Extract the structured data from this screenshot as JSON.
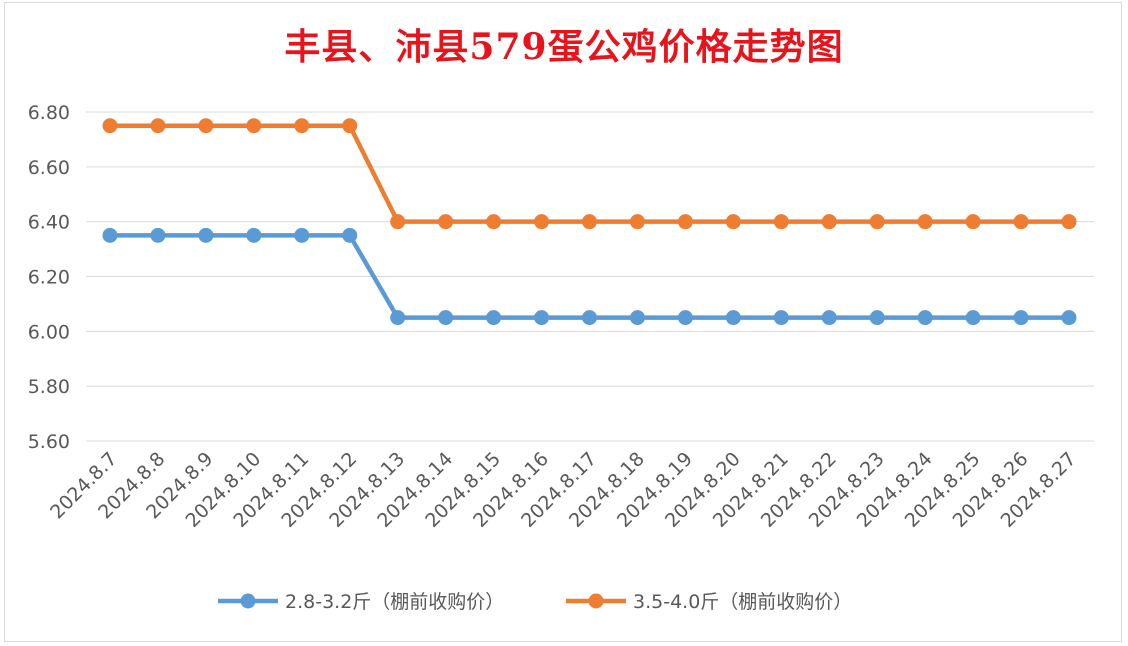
{
  "chart_data": {
    "type": "line",
    "title": "丰县、沛县579蛋公鸡价格走势图",
    "xlabel": "",
    "ylabel": "",
    "ylim": [
      5.6,
      6.8
    ],
    "yticks": [
      "6.80",
      "6.60",
      "6.40",
      "6.20",
      "6.00",
      "5.80",
      "5.60"
    ],
    "ytick_values": [
      6.8,
      6.6,
      6.4,
      6.2,
      6.0,
      5.8,
      5.6
    ],
    "grid": true,
    "legend_position": "bottom",
    "categories": [
      "2024.8.7",
      "2024.8.8",
      "2024.8.9",
      "2024.8.10",
      "2024.8.11",
      "2024.8.12",
      "2024.8.13",
      "2024.8.14",
      "2024.8.15",
      "2024.8.16",
      "2024.8.17",
      "2024.8.18",
      "2024.8.19",
      "2024.8.20",
      "2024.8.21",
      "2024.8.22",
      "2024.8.23",
      "2024.8.24",
      "2024.8.25",
      "2024.8.26",
      "2024.8.27"
    ],
    "series": [
      {
        "name": "2.8-3.2斤（棚前收购价）",
        "color": "#5b9bd5",
        "values": [
          6.35,
          6.35,
          6.35,
          6.35,
          6.35,
          6.35,
          6.05,
          6.05,
          6.05,
          6.05,
          6.05,
          6.05,
          6.05,
          6.05,
          6.05,
          6.05,
          6.05,
          6.05,
          6.05,
          6.05,
          6.05
        ]
      },
      {
        "name": "3.5-4.0斤（棚前收购价）",
        "color": "#ed7d31",
        "values": [
          6.75,
          6.75,
          6.75,
          6.75,
          6.75,
          6.75,
          6.4,
          6.4,
          6.4,
          6.4,
          6.4,
          6.4,
          6.4,
          6.4,
          6.4,
          6.4,
          6.4,
          6.4,
          6.4,
          6.4,
          6.4
        ]
      }
    ]
  }
}
